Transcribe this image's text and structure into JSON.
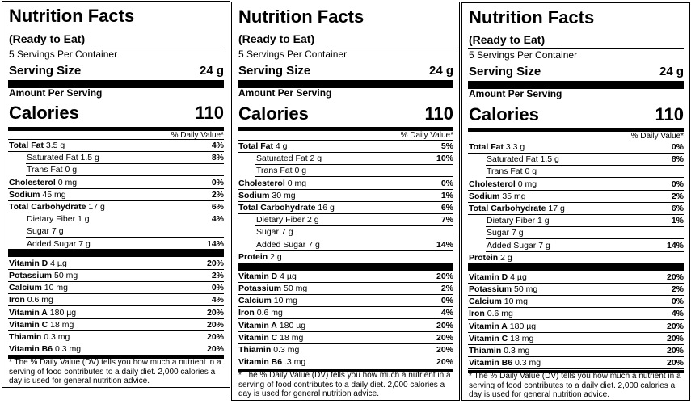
{
  "panels": [
    {
      "title": "Nutrition Facts",
      "subtitle": "(Ready to Eat)",
      "servings": "5 Servings Per Container",
      "serving_size_label": "Serving Size",
      "serving_size_value": "24 g",
      "amount_per_serving": "Amount Per Serving",
      "calories_label": "Calories",
      "calories_value": "110",
      "dv_header": "% Daily Value*",
      "nutrients": [
        {
          "name": "Total Fat",
          "amount": "3.5 g",
          "dv": "4%"
        },
        {
          "name": "Saturated Fat",
          "amount": "1.5 g",
          "dv": "8%"
        },
        {
          "name": "Trans Fat",
          "amount": "0 g",
          "dv": ""
        },
        {
          "name": "Cholesterol",
          "amount": "0 mg",
          "dv": "0%"
        },
        {
          "name": "Sodium",
          "amount": "45 mg",
          "dv": "2%"
        },
        {
          "name": "Total Carbohydrate",
          "amount": "17 g",
          "dv": "6%"
        },
        {
          "name": "Dietary Fiber",
          "amount": "1 g",
          "dv": "4%"
        },
        {
          "name": "Sugar",
          "amount": "7 g",
          "dv": ""
        },
        {
          "name": "Added Sugar",
          "amount": "7 g",
          "dv": "14%"
        }
      ],
      "vitamins": [
        {
          "name": "Vitamin D",
          "amount": "4 µg",
          "dv": "20%"
        },
        {
          "name": "Potassium",
          "amount": "50 mg",
          "dv": "2%"
        },
        {
          "name": "Calcium",
          "amount": "10 mg",
          "dv": "0%"
        },
        {
          "name": "Iron",
          "amount": "0.6 mg",
          "dv": "4%"
        },
        {
          "name": "Vitamin A",
          "amount": "180 µg",
          "dv": "20%"
        },
        {
          "name": "Vitamin C",
          "amount": "18 mg",
          "dv": "20%"
        },
        {
          "name": "Thiamin",
          "amount": "0.3 mg",
          "dv": "20%"
        },
        {
          "name": "Vitamin B6",
          "amount": "0.3 mg",
          "dv": "20%"
        }
      ],
      "footnote": "* The % Daily Value (DV) tells you how much a nutrient in a serving of food contributes to a daily diet. 2,000 calories a day is used for general nutrition advice."
    },
    {
      "title": "Nutrition Facts",
      "subtitle": "(Ready to Eat)",
      "servings": "5 Servings Per Container",
      "serving_size_label": "Serving Size",
      "serving_size_value": "24 g",
      "amount_per_serving": "Amount Per Serving",
      "calories_label": "Calories",
      "calories_value": "110",
      "dv_header": "% Daily Value*",
      "nutrients": [
        {
          "name": "Total Fat",
          "amount": "4 g",
          "dv": "5%"
        },
        {
          "name": "Saturated Fat",
          "amount": "2 g",
          "dv": "10%"
        },
        {
          "name": "Trans Fat",
          "amount": "0 g",
          "dv": ""
        },
        {
          "name": "Cholesterol",
          "amount": "0 mg",
          "dv": "0%"
        },
        {
          "name": "Sodium",
          "amount": "30 mg",
          "dv": "1%"
        },
        {
          "name": "Total Carbohydrate",
          "amount": "16 g",
          "dv": "6%"
        },
        {
          "name": "Dietary Fiber",
          "amount": "2 g",
          "dv": "7%"
        },
        {
          "name": "Sugar",
          "amount": "7 g",
          "dv": ""
        },
        {
          "name": "Added Sugar",
          "amount": "7 g",
          "dv": "14%"
        },
        {
          "name": "Protein",
          "amount": "2 g",
          "dv": ""
        }
      ],
      "vitamins": [
        {
          "name": "Vitamin D",
          "amount": "4 µg",
          "dv": "20%"
        },
        {
          "name": "Potassium",
          "amount": "50 mg",
          "dv": "2%"
        },
        {
          "name": "Calcium",
          "amount": "10 mg",
          "dv": "0%"
        },
        {
          "name": "Iron",
          "amount": "0.6 mg",
          "dv": "4%"
        },
        {
          "name": "Vitamin A",
          "amount": "180 µg",
          "dv": "20%"
        },
        {
          "name": "Vitamin C",
          "amount": "18 mg",
          "dv": "20%"
        },
        {
          "name": "Thiamin",
          "amount": "0.3 mg",
          "dv": "20%"
        },
        {
          "name": "Vitamin B6",
          "amount": ".3 mg",
          "dv": "20%"
        }
      ],
      "footnote": "* The % Daily Value (DV) tells you how much a nutrient in a serving of food contributes to a daily diet. 2,000 calories a day is used for general nutrition advice."
    },
    {
      "title": "Nutrition Facts",
      "subtitle": "(Ready to Eat)",
      "servings": "5 Servings Per Container",
      "serving_size_label": "Serving Size",
      "serving_size_value": "24 g",
      "amount_per_serving": "Amount Per Serving",
      "calories_label": "Calories",
      "calories_value": "110",
      "dv_header": "% Daily Value*",
      "nutrients": [
        {
          "name": "Total Fat",
          "amount": "3.3 g",
          "dv": "0%"
        },
        {
          "name": "Saturated Fat",
          "amount": "1.5 g",
          "dv": "8%"
        },
        {
          "name": "Trans Fat",
          "amount": "0 g",
          "dv": ""
        },
        {
          "name": "Cholesterol",
          "amount": "0 mg",
          "dv": "0%"
        },
        {
          "name": "Sodium",
          "amount": "35 mg",
          "dv": "2%"
        },
        {
          "name": "Total Carbohydrate",
          "amount": "17 g",
          "dv": "6%"
        },
        {
          "name": "Dietary Fiber",
          "amount": "1 g",
          "dv": "1%"
        },
        {
          "name": "Sugar",
          "amount": "7 g",
          "dv": ""
        },
        {
          "name": "Added Sugar",
          "amount": "7 g",
          "dv": "14%"
        },
        {
          "name": "Protein",
          "amount": "2 g",
          "dv": ""
        }
      ],
      "vitamins": [
        {
          "name": "Vitamin D",
          "amount": "4 µg",
          "dv": "20%"
        },
        {
          "name": "Potassium",
          "amount": "50 mg",
          "dv": "2%"
        },
        {
          "name": "Calcium",
          "amount": "10 mg",
          "dv": "0%"
        },
        {
          "name": "Iron",
          "amount": "0.6 mg",
          "dv": "4%"
        },
        {
          "name": "Vitamin A",
          "amount": "180 µg",
          "dv": "20%"
        },
        {
          "name": "Vitamin C",
          "amount": "18 mg",
          "dv": "20%"
        },
        {
          "name": "Thiamin",
          "amount": "0.3 mg",
          "dv": "20%"
        },
        {
          "name": "Vitamin B6",
          "amount": "0.3 mg",
          "dv": "20%"
        }
      ],
      "footnote": "* The % Daily Value (DV) tells you how much a nutrient in a serving of food contributes to a daily diet. 2,000 calories a day is used for general nutrition advice."
    }
  ]
}
